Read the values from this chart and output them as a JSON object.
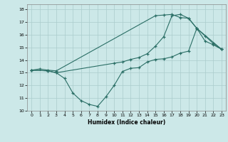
{
  "xlabel": "Humidex (Indice chaleur)",
  "bg_color": "#cce8e8",
  "line_color": "#2a6e65",
  "grid_color": "#aacccc",
  "xlim": [
    -0.5,
    23.5
  ],
  "ylim": [
    10,
    18.4
  ],
  "xticks": [
    0,
    1,
    2,
    3,
    4,
    5,
    6,
    7,
    8,
    9,
    10,
    11,
    12,
    13,
    14,
    15,
    16,
    17,
    18,
    19,
    20,
    21,
    22,
    23
  ],
  "yticks": [
    10,
    11,
    12,
    13,
    14,
    15,
    16,
    17,
    18
  ],
  "line1_x": [
    0,
    1,
    2,
    3,
    15,
    16,
    17,
    18,
    19,
    20,
    23
  ],
  "line1_y": [
    13.2,
    13.3,
    13.2,
    13.15,
    17.5,
    17.55,
    17.6,
    17.35,
    17.3,
    16.5,
    14.85
  ],
  "line2_x": [
    0,
    2,
    3,
    4,
    5,
    6,
    7,
    8,
    9,
    10,
    11,
    12,
    13,
    14,
    15,
    16,
    17,
    18,
    19,
    20,
    21,
    22,
    23
  ],
  "line2_y": [
    13.2,
    13.15,
    13.0,
    12.55,
    11.4,
    10.8,
    10.5,
    10.35,
    11.1,
    12.0,
    13.1,
    13.35,
    13.4,
    13.85,
    14.05,
    14.1,
    14.25,
    14.55,
    14.7,
    16.5,
    15.9,
    15.3,
    14.85
  ],
  "line3_x": [
    0,
    2,
    3,
    10,
    11,
    12,
    13,
    14,
    15,
    16,
    17,
    18,
    19,
    20,
    21,
    22,
    23
  ],
  "line3_y": [
    13.2,
    13.15,
    13.0,
    13.75,
    13.85,
    14.05,
    14.2,
    14.5,
    15.1,
    15.85,
    17.5,
    17.6,
    17.3,
    16.5,
    15.5,
    15.2,
    14.85
  ]
}
